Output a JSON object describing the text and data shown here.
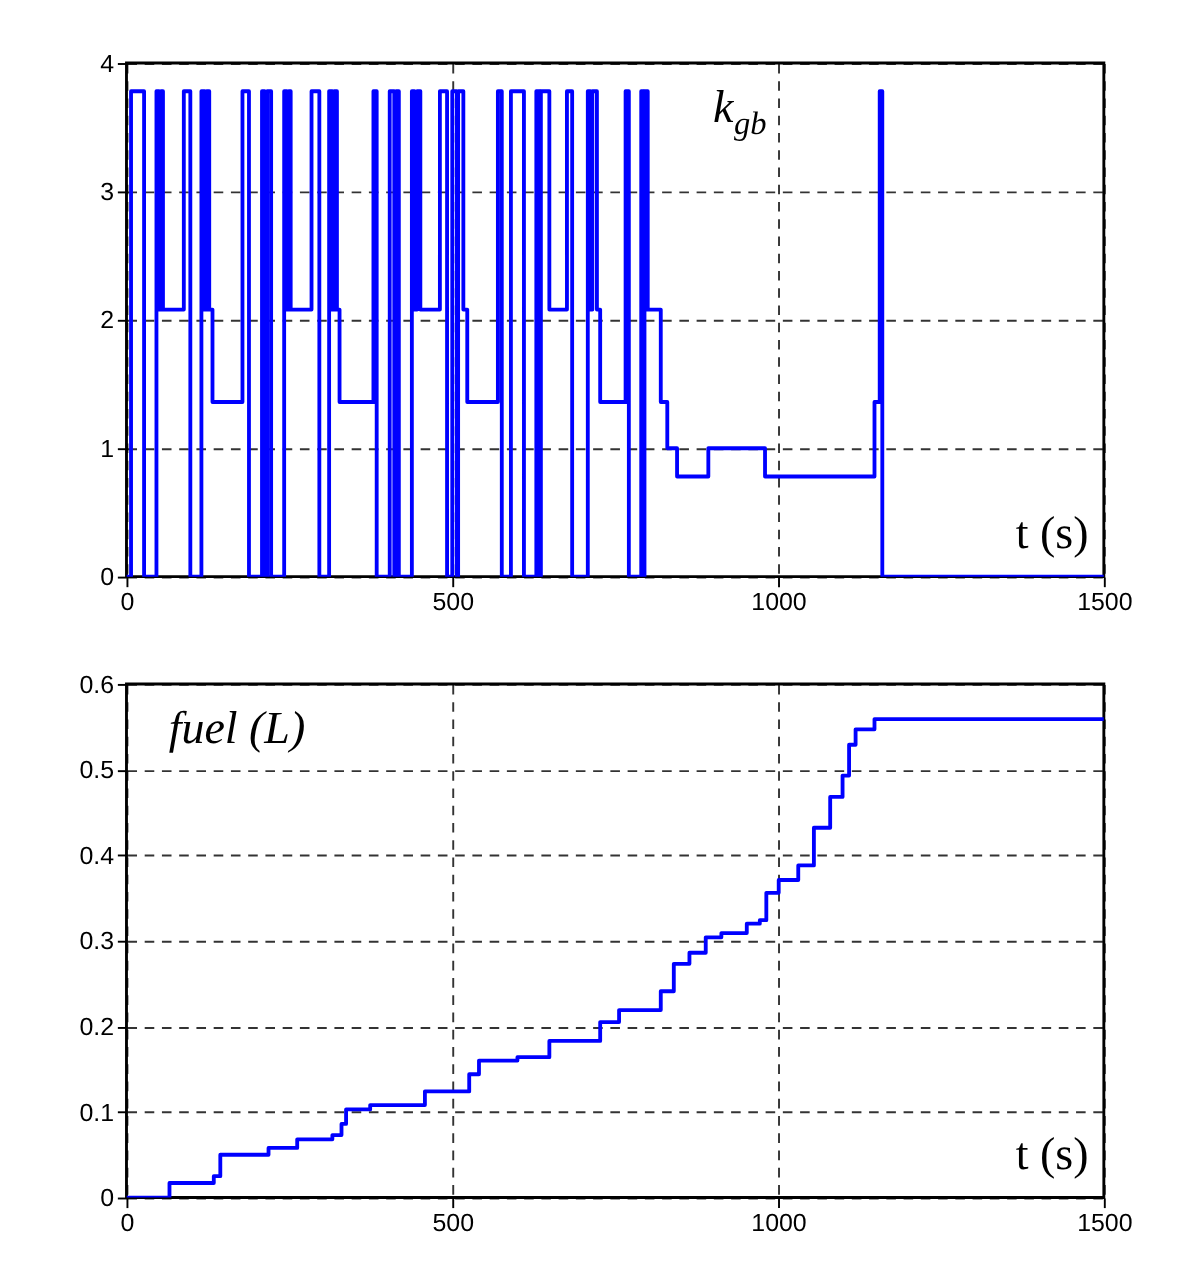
{
  "chart_data": [
    {
      "type": "step",
      "xlabel": "t (s)",
      "ylabel": "k$_{gb}$",
      "xlim": [
        0,
        1500
      ],
      "xticks": [
        0,
        500,
        1000,
        1500
      ],
      "ylim": [
        0,
        4
      ],
      "yticks": [
        0,
        1,
        2,
        3,
        4
      ],
      "grid": true,
      "series": [
        {
          "color": "#0000ff",
          "x": [
            0,
            7,
            27,
            46,
            50,
            53,
            56,
            88,
            98,
            115,
            120,
            123,
            127,
            132,
            178,
            188,
            208,
            212,
            216,
            222,
            242,
            246,
            249,
            252,
            284,
            296,
            311,
            316,
            319,
            323,
            327,
            379,
            384,
            404,
            411,
            414,
            418,
            438,
            442,
            446,
            451,
            481,
            492,
            500,
            507,
            509,
            517,
            523,
            570,
            576,
            590,
            610,
            629,
            634,
            636,
            649,
            676,
            684,
            708,
            712,
            715,
            722,
            727,
            766,
            771,
            790,
            793,
            795,
            800,
            820,
            830,
            845,
            893,
            980,
            1148,
            1156,
            1160,
            1500
          ],
          "values": [
            0,
            3.78,
            0,
            3.78,
            2.08,
            3.78,
            2.08,
            3.78,
            0,
            3.78,
            2.08,
            3.78,
            2.08,
            1.36,
            3.78,
            0,
            3.78,
            0,
            3.78,
            0,
            3.78,
            2.08,
            3.78,
            2.08,
            3.78,
            0,
            3.78,
            2.08,
            3.78,
            2.08,
            1.36,
            3.78,
            0,
            3.78,
            0,
            3.78,
            0,
            3.78,
            2.08,
            3.78,
            2.08,
            3.78,
            0,
            3.78,
            0,
            3.78,
            2.08,
            1.36,
            3.78,
            0,
            3.78,
            0,
            3.78,
            0,
            3.78,
            2.08,
            3.78,
            0,
            3.78,
            2.08,
            3.78,
            2.08,
            1.36,
            3.78,
            0,
            3.78,
            0,
            3.78,
            2.08,
            1.36,
            1.0,
            0.78,
            1.0,
            0.78,
            1.36,
            3.78,
            0,
            0
          ]
        }
      ]
    },
    {
      "type": "step",
      "xlabel": "t (s)",
      "ylabel": "fuel (L)",
      "xlim": [
        0,
        1500
      ],
      "xticks": [
        0,
        500,
        1000,
        1500
      ],
      "ylim": [
        0,
        0.6
      ],
      "yticks": [
        0,
        0.1,
        0.2,
        0.3,
        0.4,
        0.5,
        0.6
      ],
      "grid": true,
      "series": [
        {
          "color": "#0000ff",
          "x": [
            0,
            46,
            66,
            115,
            134,
            144,
            208,
            218,
            252,
            262,
            316,
            330,
            337,
            374,
            438,
            458,
            507,
            526,
            541,
            600,
            649,
            713,
            727,
            756,
            810,
            820,
            840,
            864,
            889,
            913,
            952,
            972,
            982,
            1001,
            1031,
            1055,
            1080,
            1099,
            1109,
            1119,
            1148,
            1500
          ],
          "values": [
            0,
            0,
            0.017,
            0.017,
            0.025,
            0.05,
            0.05,
            0.058,
            0.058,
            0.068,
            0.073,
            0.086,
            0.103,
            0.108,
            0.108,
            0.124,
            0.124,
            0.144,
            0.16,
            0.164,
            0.183,
            0.183,
            0.205,
            0.219,
            0.219,
            0.241,
            0.273,
            0.286,
            0.304,
            0.309,
            0.32,
            0.324,
            0.356,
            0.371,
            0.388,
            0.432,
            0.468,
            0.493,
            0.529,
            0.547,
            0.559,
            0.559
          ]
        }
      ]
    }
  ]
}
